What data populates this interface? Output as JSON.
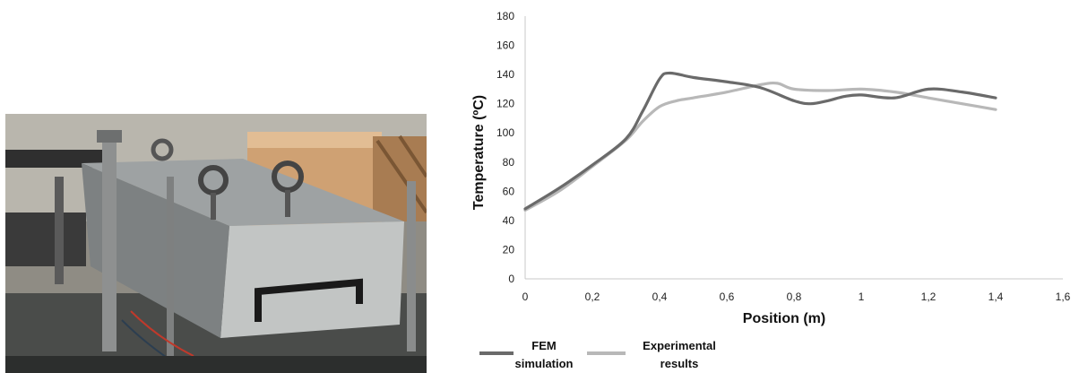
{
  "photo": {
    "description_icon": "industrial-mould-photo"
  },
  "chart_data": {
    "type": "line",
    "xlabel": "Position (m)",
    "ylabel": "Temperature (ºC)",
    "xlim": [
      0,
      1.6
    ],
    "ylim": [
      0,
      180
    ],
    "x_ticks": [
      "0",
      "0,2",
      "0,4",
      "0,6",
      "0,8",
      "1",
      "1,2",
      "1,4",
      "1,6"
    ],
    "x_tick_values": [
      0,
      0.2,
      0.4,
      0.6,
      0.8,
      1.0,
      1.2,
      1.4,
      1.6
    ],
    "y_ticks": [
      "0",
      "20",
      "40",
      "60",
      "80",
      "100",
      "120",
      "140",
      "160",
      "180"
    ],
    "y_tick_values": [
      0,
      20,
      40,
      60,
      80,
      100,
      120,
      140,
      160,
      180
    ],
    "grid": false,
    "legend_position": "bottom-left",
    "series": [
      {
        "name": "FEM simulation",
        "name_lines": [
          "FEM",
          "simulation"
        ],
        "color": "#6a6a6a",
        "x": [
          0,
          0.1,
          0.2,
          0.3,
          0.35,
          0.4,
          0.43,
          0.5,
          0.6,
          0.7,
          0.8,
          0.85,
          0.9,
          0.95,
          1.0,
          1.1,
          1.2,
          1.3,
          1.4
        ],
        "y": [
          48,
          62,
          78,
          96,
          115,
          137,
          141,
          138,
          135,
          131,
          122,
          120,
          122,
          125,
          126,
          124,
          130,
          128,
          124
        ]
      },
      {
        "name": "Experimental results",
        "name_lines": [
          "Experimental",
          "results"
        ],
        "color": "#b8b8b8",
        "x": [
          0,
          0.1,
          0.2,
          0.3,
          0.35,
          0.4,
          0.45,
          0.5,
          0.6,
          0.7,
          0.75,
          0.8,
          0.9,
          1.0,
          1.1,
          1.2,
          1.3,
          1.4
        ],
        "y": [
          47,
          60,
          77,
          95,
          108,
          118,
          122,
          124,
          128,
          133,
          134,
          130,
          129,
          130,
          128,
          124,
          120,
          116
        ]
      }
    ]
  }
}
